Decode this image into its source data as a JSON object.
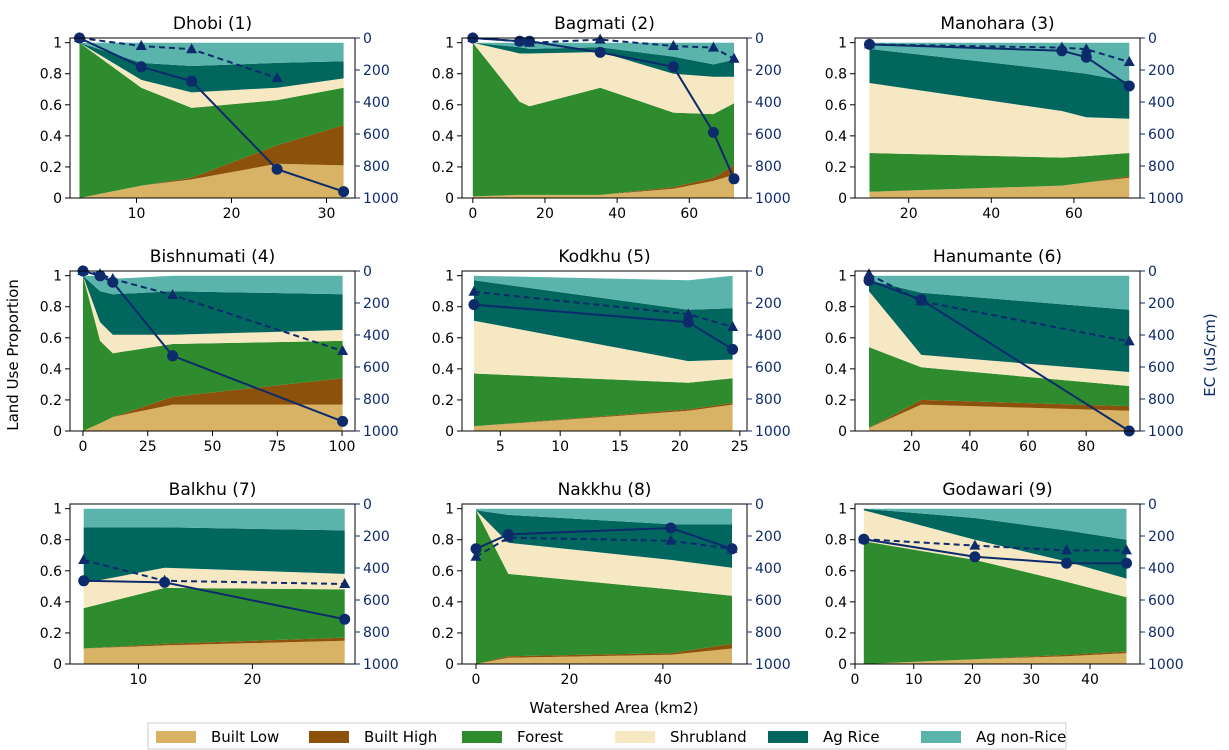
{
  "figure": {
    "ylabel_left": "Land Use Proportion",
    "ylabel_right": "EC (uS/cm)",
    "xlabel": "Watershed Area (km2)"
  },
  "legend": {
    "placement": "bottom-center",
    "entries": [
      {
        "name": "Built Low",
        "color": "#d8b365"
      },
      {
        "name": "Built High",
        "color": "#8c510a"
      },
      {
        "name": "Forest",
        "color": "#2e8b2e"
      },
      {
        "name": "Shrubland",
        "color": "#f6e8c3"
      },
      {
        "name": "Ag Rice",
        "color": "#01665e"
      },
      {
        "name": "Ag non-Rice",
        "color": "#5ab4ac"
      }
    ]
  },
  "colors": {
    "ec_line": "#0d2b6b",
    "built_low": "#d8b365",
    "built_high": "#8c510a",
    "forest": "#2e8b2e",
    "shrubland": "#f6e8c3",
    "ag_rice": "#01665e",
    "ag_nonrice": "#5ab4ac"
  },
  "chart_data": [
    {
      "type": "area",
      "title": "Dhobi (1)",
      "xlim": [
        3,
        33
      ],
      "xticks": [
        10,
        20,
        30
      ],
      "ylim": [
        0,
        1.03
      ],
      "yticks": [
        0.0,
        0.2,
        0.4,
        0.6,
        0.8,
        1.0
      ],
      "y2lim": [
        1000,
        0
      ],
      "y2ticks": [
        0,
        200,
        400,
        600,
        800,
        1000
      ],
      "x": [
        4,
        10.5,
        15.8,
        24.8,
        31.8
      ],
      "layers": {
        "built_low": [
          0.0,
          0.08,
          0.12,
          0.22,
          0.21
        ],
        "built_high": [
          0.0,
          0.0,
          0.01,
          0.12,
          0.26
        ],
        "forest": [
          1.0,
          0.63,
          0.45,
          0.29,
          0.24
        ],
        "shrubland": [
          0.0,
          0.05,
          0.1,
          0.08,
          0.06
        ],
        "ag_rice": [
          0.0,
          0.11,
          0.17,
          0.16,
          0.11
        ],
        "ag_nonrice": [
          0.0,
          0.13,
          0.15,
          0.13,
          0.12
        ]
      },
      "ec_solid": {
        "x": [
          4,
          10.5,
          15.8,
          24.8,
          31.8
        ],
        "y": [
          0,
          180,
          270,
          820,
          960
        ]
      },
      "ec_dashed": {
        "x": [
          4,
          10.5,
          15.8,
          24.8
        ],
        "y": [
          0,
          50,
          70,
          250
        ]
      }
    },
    {
      "type": "area",
      "title": "Bagmati (2)",
      "xlim": [
        -3,
        76
      ],
      "xticks": [
        0,
        20,
        40,
        60
      ],
      "ylim": [
        0,
        1.03
      ],
      "yticks": [
        0.0,
        0.2,
        0.4,
        0.6,
        0.8,
        1.0
      ],
      "y2lim": [
        1000,
        0
      ],
      "y2ticks": [
        0,
        200,
        400,
        600,
        800,
        1000
      ],
      "x": [
        0,
        13,
        15.7,
        35.3,
        55.6,
        66.7,
        72.4
      ],
      "layers": {
        "built_low": [
          0.01,
          0.02,
          0.02,
          0.02,
          0.06,
          0.11,
          0.15
        ],
        "built_high": [
          0.0,
          0.0,
          0.0,
          0.0,
          0.01,
          0.02,
          0.06
        ],
        "forest": [
          0.99,
          0.6,
          0.57,
          0.69,
          0.48,
          0.41,
          0.4
        ],
        "shrubland": [
          0.0,
          0.31,
          0.34,
          0.23,
          0.25,
          0.24,
          0.17
        ],
        "ag_rice": [
          0.0,
          0.04,
          0.03,
          0.03,
          0.11,
          0.08,
          0.11
        ],
        "ag_nonrice": [
          0.0,
          0.03,
          0.04,
          0.03,
          0.09,
          0.14,
          0.11
        ]
      },
      "ec_solid": {
        "x": [
          0,
          13,
          15.7,
          35.3,
          55.6,
          66.7,
          72.4
        ],
        "y": [
          0,
          20,
          20,
          90,
          180,
          590,
          880
        ]
      },
      "ec_dashed": {
        "x": [
          0,
          13,
          15.7,
          35.3,
          55.6,
          66.7,
          72.4
        ],
        "y": [
          0,
          20,
          30,
          10,
          50,
          60,
          130
        ]
      }
    },
    {
      "type": "area",
      "title": "Manohara (3)",
      "xlim": [
        7,
        76
      ],
      "xticks": [
        20,
        40,
        60
      ],
      "ylim": [
        0,
        1.03
      ],
      "yticks": [
        0.0,
        0.2,
        0.4,
        0.6,
        0.8,
        1.0
      ],
      "y2lim": [
        1000,
        0
      ],
      "y2ticks": [
        0,
        200,
        400,
        600,
        800,
        1000
      ],
      "x": [
        10.5,
        57.1,
        63,
        73.4
      ],
      "layers": {
        "built_low": [
          0.04,
          0.08,
          0.1,
          0.13
        ],
        "built_high": [
          0.0,
          0.0,
          0.0,
          0.01
        ],
        "forest": [
          0.25,
          0.18,
          0.17,
          0.15
        ],
        "shrubland": [
          0.45,
          0.3,
          0.25,
          0.22
        ],
        "ag_rice": [
          0.22,
          0.26,
          0.28,
          0.24
        ],
        "ag_nonrice": [
          0.04,
          0.18,
          0.2,
          0.25
        ]
      },
      "ec_solid": {
        "x": [
          10.5,
          57.1,
          63,
          73.4
        ],
        "y": [
          40,
          80,
          120,
          300
        ]
      },
      "ec_dashed": {
        "x": [
          10.5,
          57.1,
          63,
          73.4
        ],
        "y": [
          40,
          60,
          70,
          150
        ]
      }
    },
    {
      "type": "area",
      "title": "Bishnumati (4)",
      "xlim": [
        -5,
        105
      ],
      "xticks": [
        0,
        25,
        50,
        75,
        100
      ],
      "ylim": [
        0,
        1.03
      ],
      "yticks": [
        0.0,
        0.2,
        0.4,
        0.6,
        0.8,
        1.0
      ],
      "y2lim": [
        1000,
        0
      ],
      "y2ticks": [
        0,
        200,
        400,
        600,
        800,
        1000
      ],
      "x": [
        0,
        6.6,
        11.5,
        34.6,
        100.2
      ],
      "layers": {
        "built_low": [
          0.0,
          0.05,
          0.09,
          0.17,
          0.17
        ],
        "built_high": [
          0.0,
          0.0,
          0.0,
          0.05,
          0.17
        ],
        "forest": [
          1.0,
          0.53,
          0.41,
          0.34,
          0.24
        ],
        "shrubland": [
          0.0,
          0.12,
          0.12,
          0.06,
          0.07
        ],
        "ag_rice": [
          0.0,
          0.2,
          0.26,
          0.28,
          0.23
        ],
        "ag_nonrice": [
          0.0,
          0.1,
          0.1,
          0.1,
          0.12
        ]
      },
      "ec_solid": {
        "x": [
          0,
          6.6,
          11.5,
          34.6,
          100.2
        ],
        "y": [
          0,
          30,
          70,
          530,
          940
        ]
      },
      "ec_dashed": {
        "x": [
          0,
          6.6,
          11.5,
          34.6,
          100.2
        ],
        "y": [
          0,
          20,
          50,
          150,
          500
        ]
      }
    },
    {
      "type": "area",
      "title": "Kodkhu (5)",
      "xlim": [
        1.8,
        25.6
      ],
      "xticks": [
        5,
        10,
        15,
        20,
        25
      ],
      "ylim": [
        0,
        1.03
      ],
      "yticks": [
        0.0,
        0.2,
        0.4,
        0.6,
        0.8,
        1.0
      ],
      "y2lim": [
        1000,
        0
      ],
      "y2ticks": [
        0,
        200,
        400,
        600,
        800,
        1000
      ],
      "x": [
        2.8,
        20.7,
        24.4
      ],
      "layers": {
        "built_low": [
          0.03,
          0.13,
          0.17
        ],
        "built_high": [
          0.0,
          0.01,
          0.01
        ],
        "forest": [
          0.34,
          0.17,
          0.16
        ],
        "shrubland": [
          0.34,
          0.14,
          0.12
        ],
        "ag_rice": [
          0.26,
          0.33,
          0.33
        ],
        "ag_nonrice": [
          0.03,
          0.19,
          0.21
        ]
      },
      "ec_solid": {
        "x": [
          2.8,
          20.7,
          24.4
        ],
        "y": [
          210,
          320,
          490
        ]
      },
      "ec_dashed": {
        "x": [
          2.8,
          20.7,
          24.4
        ],
        "y": [
          130,
          270,
          350
        ]
      }
    },
    {
      "type": "area",
      "title": "Hanumante (6)",
      "xlim": [
        0.5,
        98.5
      ],
      "xticks": [
        20,
        40,
        60,
        80
      ],
      "ylim": [
        0,
        1.03
      ],
      "yticks": [
        0.0,
        0.2,
        0.4,
        0.6,
        0.8,
        1.0
      ],
      "y2lim": [
        1000,
        0
      ],
      "y2ticks": [
        0,
        200,
        400,
        600,
        800,
        1000
      ],
      "x": [
        5.3,
        23.3,
        94.8
      ],
      "layers": {
        "built_low": [
          0.02,
          0.17,
          0.13
        ],
        "built_high": [
          0.0,
          0.03,
          0.03
        ],
        "forest": [
          0.52,
          0.21,
          0.13
        ],
        "shrubland": [
          0.36,
          0.08,
          0.09
        ],
        "ag_rice": [
          0.07,
          0.4,
          0.4
        ],
        "ag_nonrice": [
          0.03,
          0.11,
          0.22
        ]
      },
      "ec_solid": {
        "x": [
          5.3,
          23.3,
          94.8
        ],
        "y": [
          60,
          180,
          1000
        ]
      },
      "ec_dashed": {
        "x": [
          5.3,
          23.3,
          94.8
        ],
        "y": [
          20,
          190,
          440
        ]
      }
    },
    {
      "type": "area",
      "title": "Balkhu (7)",
      "xlim": [
        4,
        29
      ],
      "xticks": [
        10,
        20
      ],
      "ylim": [
        0,
        1.03
      ],
      "yticks": [
        0.0,
        0.2,
        0.4,
        0.6,
        0.8,
        1.0
      ],
      "y2lim": [
        1000,
        0
      ],
      "y2ticks": [
        0,
        200,
        400,
        600,
        800,
        1000
      ],
      "x": [
        5.2,
        12.3,
        28.1
      ],
      "layers": {
        "built_low": [
          0.1,
          0.12,
          0.15
        ],
        "built_high": [
          0.0,
          0.01,
          0.02
        ],
        "forest": [
          0.26,
          0.36,
          0.31
        ],
        "shrubland": [
          0.16,
          0.13,
          0.1
        ],
        "ag_rice": [
          0.36,
          0.26,
          0.28
        ],
        "ag_nonrice": [
          0.12,
          0.12,
          0.14
        ]
      },
      "ec_solid": {
        "x": [
          5.2,
          12.3,
          28.1
        ],
        "y": [
          480,
          490,
          720
        ]
      },
      "ec_dashed": {
        "x": [
          5.2,
          12.3,
          28.1
        ],
        "y": [
          350,
          480,
          500
        ]
      }
    },
    {
      "type": "area",
      "title": "Nakkhu (8)",
      "xlim": [
        -3,
        58
      ],
      "xticks": [
        0,
        20,
        40
      ],
      "ylim": [
        0,
        1.03
      ],
      "yticks": [
        0.0,
        0.2,
        0.4,
        0.6,
        0.8,
        1.0
      ],
      "y2lim": [
        1000,
        0
      ],
      "y2ticks": [
        0,
        200,
        400,
        600,
        800,
        1000
      ],
      "x": [
        0,
        6.9,
        41.7,
        54.8
      ],
      "layers": {
        "built_low": [
          0.0,
          0.04,
          0.06,
          0.1
        ],
        "built_high": [
          0.0,
          0.01,
          0.01,
          0.03
        ],
        "forest": [
          0.99,
          0.53,
          0.41,
          0.31
        ],
        "shrubland": [
          0.0,
          0.2,
          0.19,
          0.18
        ],
        "ag_rice": [
          0.0,
          0.18,
          0.23,
          0.28
        ],
        "ag_nonrice": [
          0.01,
          0.04,
          0.1,
          0.1
        ]
      },
      "ec_solid": {
        "x": [
          0,
          6.9,
          41.7,
          54.8
        ],
        "y": [
          280,
          190,
          150,
          280
        ]
      },
      "ec_dashed": {
        "x": [
          0,
          6.9,
          41.7,
          54.8
        ],
        "y": [
          330,
          210,
          230,
          280
        ]
      }
    },
    {
      "type": "area",
      "title": "Godawari (9)",
      "xlim": [
        0,
        48.5
      ],
      "xticks": [
        0,
        10,
        20,
        30,
        40
      ],
      "ylim": [
        0,
        1.03
      ],
      "yticks": [
        0.0,
        0.2,
        0.4,
        0.6,
        0.8,
        1.0
      ],
      "y2lim": [
        1000,
        0
      ],
      "y2ticks": [
        0,
        200,
        400,
        600,
        800,
        1000
      ],
      "x": [
        1.5,
        20.4,
        36,
        46.2
      ],
      "layers": {
        "built_low": [
          0.0,
          0.03,
          0.05,
          0.07
        ],
        "built_high": [
          0.0,
          0.0,
          0.01,
          0.01
        ],
        "forest": [
          0.79,
          0.64,
          0.47,
          0.35
        ],
        "shrubland": [
          0.2,
          0.13,
          0.13,
          0.12
        ],
        "ag_rice": [
          0.01,
          0.14,
          0.2,
          0.25
        ],
        "ag_nonrice": [
          0.0,
          0.06,
          0.14,
          0.2
        ]
      },
      "ec_solid": {
        "x": [
          1.5,
          20.4,
          36,
          46.2
        ],
        "y": [
          220,
          330,
          370,
          370
        ]
      },
      "ec_dashed": {
        "x": [
          1.5,
          20.4,
          36,
          46.2
        ],
        "y": [
          220,
          260,
          290,
          290
        ]
      }
    }
  ]
}
